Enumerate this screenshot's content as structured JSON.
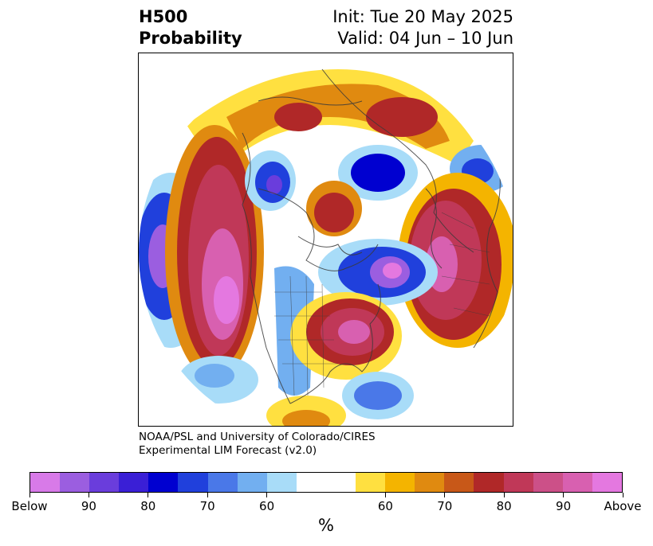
{
  "title": {
    "left_line1": "H500",
    "left_line2": "Probability",
    "right_line1": "Init: Tue 20 May 2025",
    "right_line2": "Valid: 04 Jun – 10 Jun"
  },
  "credit": {
    "line1": "NOAA/PSL and University of Colorado/CIRES",
    "line2": "Experimental LIM Forecast (v2.0)"
  },
  "colorbar": {
    "units": "%",
    "tick_labels": [
      "Below",
      "90",
      "80",
      "70",
      "60",
      "60",
      "70",
      "80",
      "90",
      "Above"
    ],
    "colors": [
      "#d87ae8",
      "#9b5ee0",
      "#6a3ddc",
      "#3a1fd6",
      "#0000d0",
      "#2040dc",
      "#4a78e8",
      "#72aff0",
      "#a8dcf8",
      "#ffffff",
      "#ffffff",
      "#ffe040",
      "#f4b400",
      "#e08a10",
      "#c85818",
      "#b02828",
      "#c03858",
      "#cc5088",
      "#d860b0",
      "#e478e0"
    ]
  },
  "map": {
    "projection": "north-polar-stereographic",
    "description_colors": {
      "below": "#3a1fd6",
      "above": "#c03858",
      "neutral": "#ffffff"
    }
  }
}
